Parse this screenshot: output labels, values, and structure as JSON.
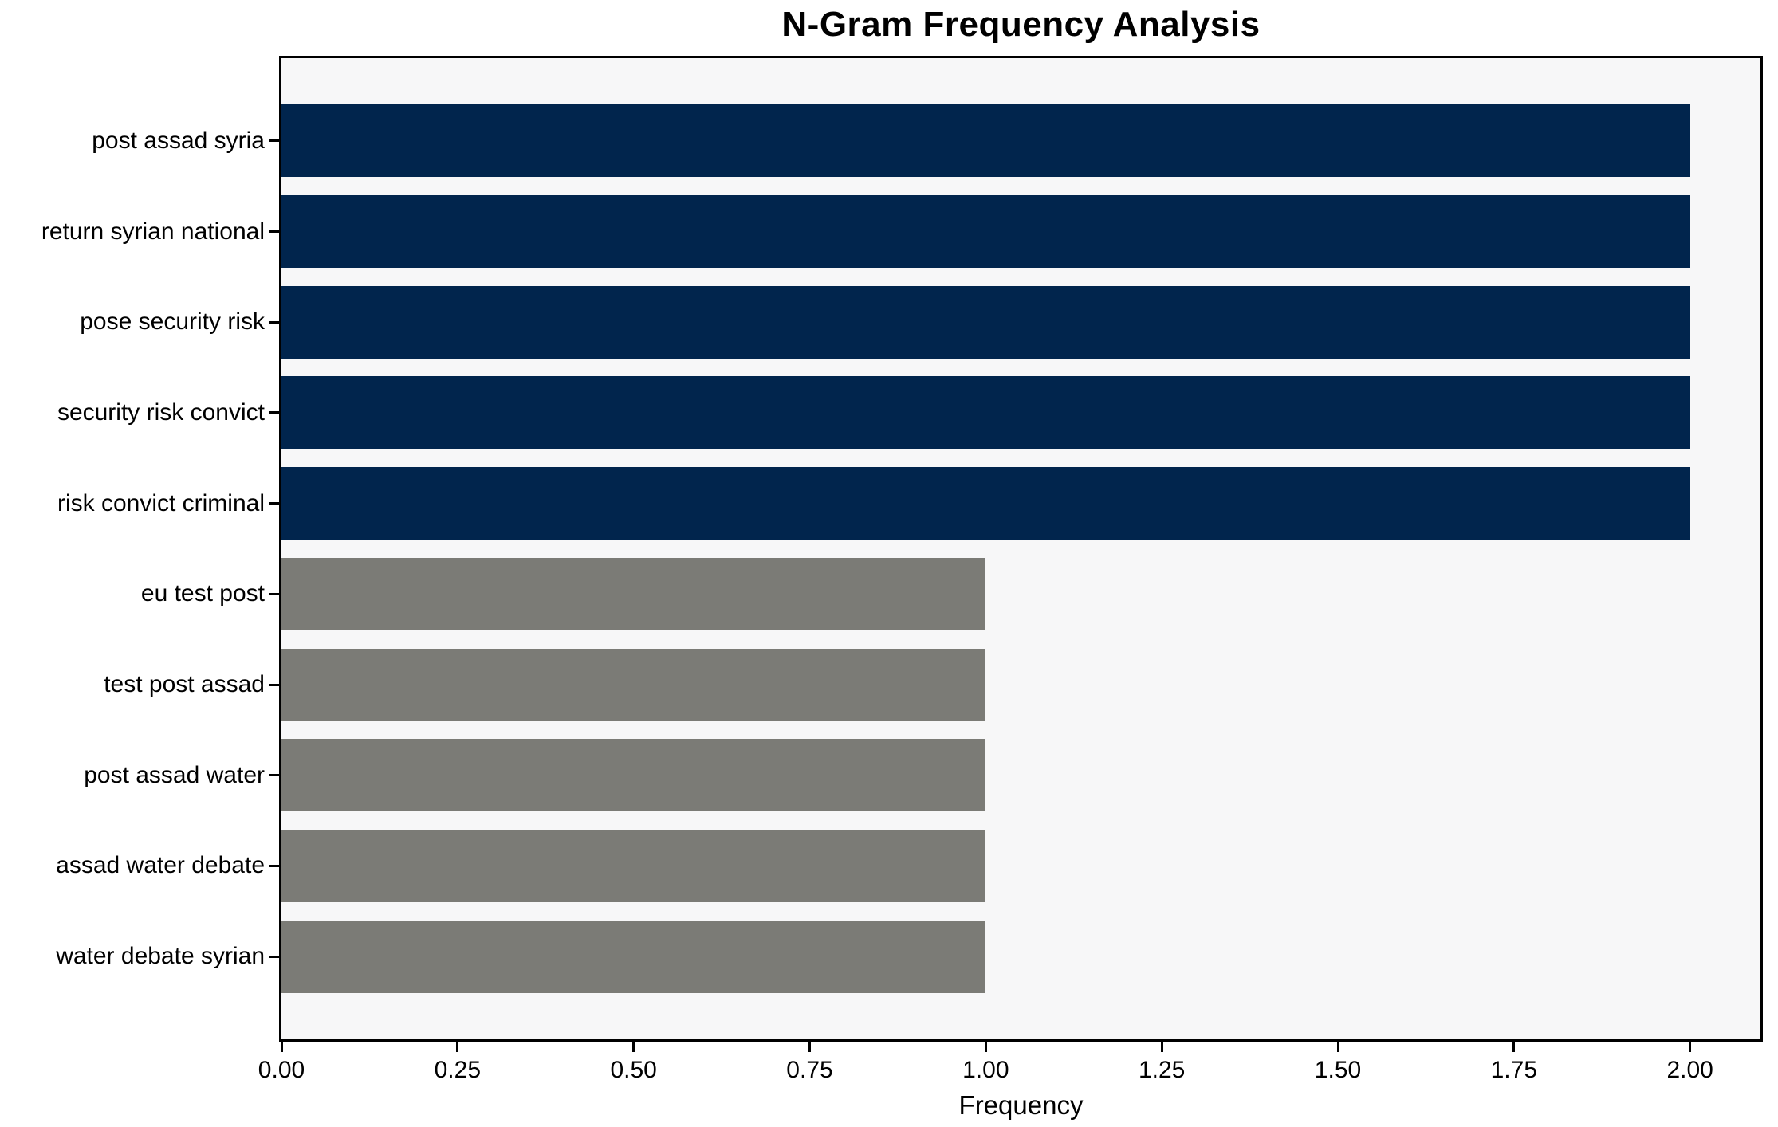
{
  "title": "N-Gram Frequency Analysis",
  "chart_data": {
    "type": "bar",
    "orientation": "horizontal",
    "title": "N-Gram Frequency Analysis",
    "xlabel": "Frequency",
    "ylabel": "",
    "categories": [
      "post assad syria",
      "return syrian national",
      "pose security risk",
      "security risk convict",
      "risk convict criminal",
      "eu test post",
      "test post assad",
      "post assad water",
      "assad water debate",
      "water debate syrian"
    ],
    "values": [
      2,
      2,
      2,
      2,
      2,
      1,
      1,
      1,
      1,
      1
    ],
    "bar_colors": [
      "#01254d",
      "#01254d",
      "#01254d",
      "#01254d",
      "#01254d",
      "#7b7b76",
      "#7b7b76",
      "#7b7b76",
      "#7b7b76",
      "#7b7b76"
    ],
    "xlim": [
      0,
      2.1
    ],
    "x_ticks": [
      0,
      0.25,
      0.5,
      0.75,
      1.0,
      1.25,
      1.5,
      1.75,
      2.0
    ],
    "x_tick_labels": [
      "0.00",
      "0.25",
      "0.50",
      "0.75",
      "1.00",
      "1.25",
      "1.50",
      "1.75",
      "2.00"
    ],
    "grid": false,
    "legend": null,
    "colors": {
      "bar_frequent": "#01254d",
      "bar_infrequent": "#7b7b76",
      "plot_background": "#f7f7f8",
      "figure_background": "#ffffff",
      "spine": "#000000",
      "text": "#000000"
    }
  }
}
